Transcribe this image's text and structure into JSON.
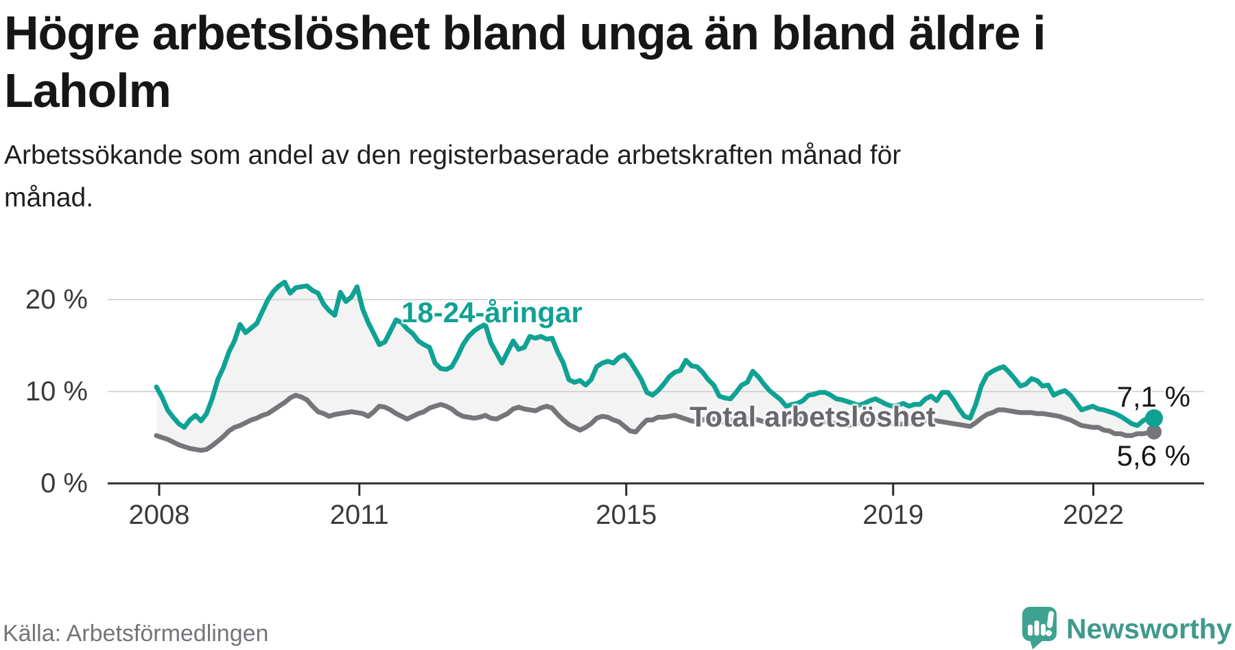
{
  "header": {
    "title_lines": [
      "Högre arbetslöshet bland unga än bland äldre i",
      "Laholm"
    ],
    "subtitle_lines": [
      "Arbetssökande som andel av den registerbaserade arbetskraften månad för",
      "månad."
    ]
  },
  "footer": {
    "source": "Källa: Arbetsförmedlingen",
    "brand": "Newsworthy"
  },
  "colors": {
    "youth_line": "#0FA294",
    "total_line": "#75757A",
    "band_fill": "#F3F3F3",
    "grid": "#D6D6D6",
    "axis": "#2D2D2D",
    "brand_teal": "#3EA290"
  },
  "chart_data": {
    "type": "line",
    "title": "Högre arbetslöshet bland unga än bland äldre i Laholm",
    "subtitle": "Arbetssökande som andel av den registerbaserade arbetskraften månad för månad.",
    "source": "Källa: Arbetsförmedlingen",
    "frequency": "monthly",
    "x_start": "2008-01",
    "x_end": "2022-12",
    "x_ticks": [
      2008,
      2011,
      2015,
      2019,
      2022
    ],
    "y_ticks": [
      {
        "label": "0 %",
        "value": 0
      },
      {
        "label": "10 %",
        "value": 10
      },
      {
        "label": "20 %",
        "value": 20
      }
    ],
    "ylim": [
      0,
      26
    ],
    "grid": "horizontal",
    "legend_position": "inline-labels",
    "band_fill_between_series": true,
    "series": [
      {
        "name": "18-24-åringar",
        "color": "#0FA294",
        "end_label": "7,1 %",
        "last_value": 7.1,
        "values": [
          10.5,
          9.4,
          8.0,
          7.2,
          6.5,
          6.1,
          6.9,
          7.4,
          6.8,
          7.6,
          9.2,
          11.3,
          12.6,
          14.3,
          15.5,
          17.3,
          16.4,
          16.9,
          17.4,
          18.7,
          20.0,
          20.9,
          21.5,
          21.9,
          20.7,
          21.3,
          21.4,
          21.5,
          21.0,
          20.7,
          19.5,
          18.8,
          18.3,
          20.8,
          19.8,
          20.3,
          21.4,
          19.0,
          17.5,
          16.3,
          15.1,
          15.4,
          16.6,
          17.8,
          17.5,
          16.8,
          16.3,
          15.5,
          15.1,
          14.8,
          13.1,
          12.5,
          12.4,
          12.7,
          13.8,
          15.1,
          16.0,
          16.6,
          17.0,
          17.3,
          15.3,
          14.2,
          13.1,
          14.3,
          15.5,
          14.6,
          14.8,
          16.0,
          15.8,
          16.0,
          15.7,
          15.8,
          14.3,
          13.1,
          11.3,
          11.0,
          11.2,
          10.7,
          11.3,
          12.7,
          13.1,
          13.3,
          13.1,
          13.7,
          14.0,
          13.3,
          12.3,
          11.3,
          9.9,
          9.6,
          10.1,
          10.8,
          11.6,
          12.1,
          12.3,
          13.4,
          12.8,
          12.7,
          12.1,
          11.3,
          10.7,
          9.5,
          9.3,
          9.2,
          9.9,
          10.7,
          11.0,
          12.2,
          11.6,
          10.8,
          10.1,
          9.6,
          9.1,
          8.4,
          8.6,
          8.7,
          9.0,
          9.6,
          9.7,
          9.9,
          9.9,
          9.6,
          9.2,
          9.1,
          8.9,
          8.7,
          8.5,
          8.7,
          9.0,
          9.2,
          8.9,
          8.6,
          8.4,
          8.5,
          8.7,
          8.4,
          8.6,
          8.6,
          9.2,
          9.5,
          9.0,
          9.9,
          9.9,
          9.1,
          8.1,
          7.3,
          7.1,
          8.6,
          10.6,
          11.8,
          12.2,
          12.5,
          12.7,
          12.1,
          11.4,
          10.6,
          10.8,
          11.4,
          11.2,
          10.6,
          10.7,
          9.6,
          9.9,
          10.1,
          9.6,
          8.8,
          8.0,
          8.2,
          8.4,
          8.1,
          8.0,
          7.8,
          7.6,
          7.3,
          6.9,
          6.5,
          6.3,
          6.8,
          7.2,
          7.1
        ]
      },
      {
        "name": "Total arbetslöshet",
        "color": "#75757A",
        "end_label": "5,6 %",
        "last_value": 5.6,
        "values": [
          5.2,
          5.0,
          4.8,
          4.5,
          4.2,
          4.0,
          3.8,
          3.7,
          3.6,
          3.7,
          4.1,
          4.6,
          5.1,
          5.7,
          6.1,
          6.3,
          6.6,
          6.9,
          7.1,
          7.4,
          7.6,
          8.0,
          8.4,
          8.8,
          9.3,
          9.6,
          9.4,
          9.1,
          8.4,
          7.8,
          7.6,
          7.3,
          7.5,
          7.6,
          7.7,
          7.8,
          7.7,
          7.6,
          7.3,
          7.8,
          8.4,
          8.3,
          8.0,
          7.6,
          7.3,
          7.0,
          7.3,
          7.6,
          7.8,
          8.2,
          8.4,
          8.6,
          8.4,
          8.1,
          7.6,
          7.3,
          7.2,
          7.1,
          7.2,
          7.4,
          7.1,
          7.0,
          7.3,
          7.6,
          8.1,
          8.3,
          8.1,
          8.0,
          7.9,
          8.2,
          8.4,
          8.2,
          7.5,
          6.9,
          6.4,
          6.1,
          5.8,
          6.1,
          6.5,
          7.1,
          7.3,
          7.2,
          6.9,
          6.7,
          6.2,
          5.7,
          5.6,
          6.3,
          6.9,
          6.9,
          7.2,
          7.2,
          7.3,
          7.4,
          7.2,
          7.0,
          6.8,
          6.7,
          6.9,
          7.1,
          7.0,
          6.8,
          6.6,
          6.8,
          7.0,
          7.2,
          7.1,
          7.0,
          6.9,
          6.7,
          6.6,
          6.5,
          6.4,
          6.6,
          6.8,
          7.0,
          7.1,
          7.0,
          6.9,
          6.8,
          6.7,
          6.6,
          6.5,
          6.4,
          6.3,
          6.4,
          6.6,
          6.8,
          6.9,
          6.8,
          6.7,
          6.6,
          6.5,
          6.4,
          6.5,
          6.6,
          6.5,
          6.6,
          6.8,
          6.9,
          6.8,
          6.7,
          6.6,
          6.5,
          6.4,
          6.3,
          6.2,
          6.6,
          7.1,
          7.5,
          7.7,
          8.0,
          8.0,
          7.9,
          7.8,
          7.7,
          7.7,
          7.7,
          7.6,
          7.6,
          7.5,
          7.4,
          7.3,
          7.1,
          6.9,
          6.6,
          6.3,
          6.2,
          6.1,
          6.1,
          5.8,
          5.7,
          5.4,
          5.4,
          5.2,
          5.2,
          5.4,
          5.4,
          5.5,
          5.6
        ]
      }
    ]
  }
}
